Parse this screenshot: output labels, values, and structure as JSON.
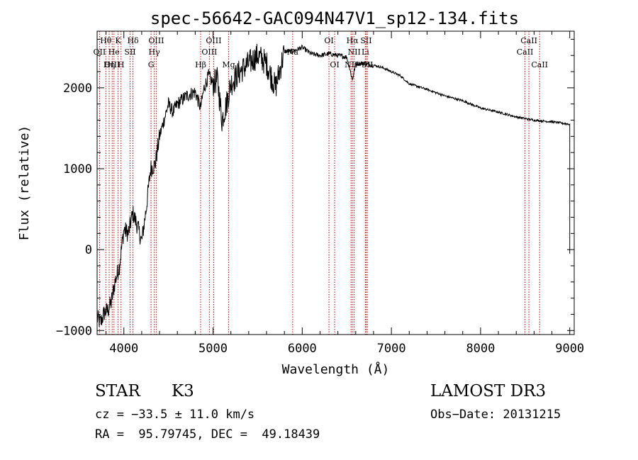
{
  "chart_data": {
    "type": "line",
    "title": "spec-56642-GAC094N47V1_sp12-134.fits",
    "xlabel": "Wavelength (Å)",
    "ylabel": "Flux (relative)",
    "xlim": [
      3700,
      9050
    ],
    "ylim": [
      -1050,
      2700
    ],
    "xticks": [
      4000,
      5000,
      6000,
      7000,
      8000,
      9000
    ],
    "xtick_labels": [
      "4000",
      "5000",
      "6000",
      "7000",
      "8000",
      "9000"
    ],
    "yticks": [
      -1000,
      0,
      1000,
      2000
    ],
    "ytick_labels": [
      "−1000",
      "0",
      "1000",
      "2000"
    ],
    "grid": false,
    "series": [
      {
        "name": "spectrum",
        "x": [
          3700,
          3740,
          3780,
          3820,
          3860,
          3900,
          3950,
          4000,
          4050,
          4100,
          4150,
          4200,
          4250,
          4300,
          4350,
          4400,
          4450,
          4500,
          4550,
          4600,
          4700,
          4800,
          4860,
          4900,
          4950,
          5000,
          5050,
          5100,
          5150,
          5200,
          5300,
          5400,
          5500,
          5600,
          5700,
          5800,
          5890,
          6000,
          6100,
          6200,
          6300,
          6400,
          6500,
          6563,
          6600,
          6700,
          6800,
          6900,
          7000,
          7100,
          7200,
          7400,
          7600,
          7800,
          8000,
          8200,
          8400,
          8600,
          8800,
          9000
        ],
        "y": [
          -850,
          -900,
          -780,
          -750,
          -650,
          -400,
          -200,
          250,
          200,
          450,
          300,
          100,
          500,
          1000,
          1050,
          1400,
          1600,
          1800,
          1700,
          1800,
          1900,
          1950,
          1750,
          2000,
          2150,
          2050,
          2100,
          1600,
          1800,
          2050,
          2200,
          2300,
          2400,
          2300,
          2000,
          2450,
          2450,
          2500,
          2420,
          2400,
          2420,
          2400,
          2380,
          2100,
          2300,
          2300,
          2280,
          2250,
          2200,
          2150,
          2050,
          1980,
          1900,
          1840,
          1750,
          1700,
          1640,
          1600,
          1580,
          1550
        ]
      }
    ],
    "lines": [
      {
        "label": "Hθ",
        "wl": 3798,
        "row": 1
      },
      {
        "label": "OII",
        "wl": 3727,
        "row": 2
      },
      {
        "label": "OIII",
        "wl": 3869,
        "row": 3
      },
      {
        "label": "K",
        "wl": 3934,
        "row": 1
      },
      {
        "label": "He",
        "wl": 3889,
        "row": 2
      },
      {
        "label": "Hη",
        "wl": 3835,
        "row": 3
      },
      {
        "label": "Hδ",
        "wl": 4102,
        "row": 1
      },
      {
        "label": "SII",
        "wl": 4070,
        "row": 2
      },
      {
        "label": "H",
        "wl": 3968,
        "row": 3
      },
      {
        "label": "OIII",
        "wl": 4363,
        "row": 1
      },
      {
        "label": "Hγ",
        "wl": 4341,
        "row": 2
      },
      {
        "label": "G",
        "wl": 4305,
        "row": 3
      },
      {
        "label": "OIII",
        "wl": 5007,
        "row": 1
      },
      {
        "label": "OIII",
        "wl": 4959,
        "row": 2
      },
      {
        "label": "Hβ",
        "wl": 4861,
        "row": 3
      },
      {
        "label": "Mg",
        "wl": 5175,
        "row": 3
      },
      {
        "label": "Na",
        "wl": 5893,
        "row": 2
      },
      {
        "label": "OI",
        "wl": 6300,
        "row": 1
      },
      {
        "label": "OI",
        "wl": 6364,
        "row": 3
      },
      {
        "label": "Hα",
        "wl": 6563,
        "row": 1
      },
      {
        "label": "NII",
        "wl": 6583,
        "row": 2
      },
      {
        "label": "NII",
        "wl": 6548,
        "row": 3
      },
      {
        "label": "SII",
        "wl": 6717,
        "row": 1
      },
      {
        "label": "Li",
        "wl": 6708,
        "row": 2
      },
      {
        "label": "SII",
        "wl": 6731,
        "row": 3
      },
      {
        "label": "CaII",
        "wl": 8542,
        "row": 1
      },
      {
        "label": "CaII",
        "wl": 8498,
        "row": 2
      },
      {
        "label": "CaII",
        "wl": 8662,
        "row": 3
      }
    ],
    "colors": {
      "spectrum": "#000000",
      "lines": "#cc0000",
      "axes": "#000000"
    }
  },
  "info": {
    "class": "STAR",
    "subclass": "K3",
    "survey": "LAMOST DR3",
    "cz": "cz = −33.5 ± 11.0 km/s",
    "obs_date": "Obs−Date: 20131215",
    "coords": "RA =  95.79745, DEC =  49.18439"
  }
}
